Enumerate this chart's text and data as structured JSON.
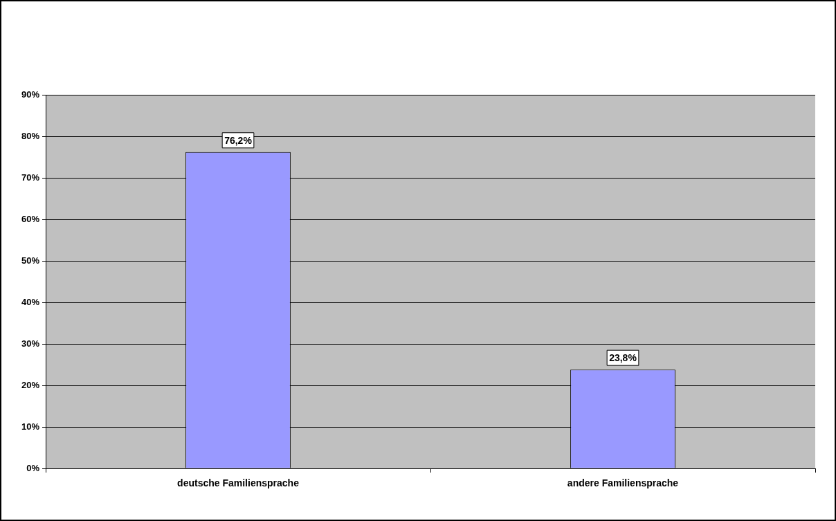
{
  "chart_data": {
    "type": "bar",
    "categories": [
      "deutsche Familiensprache",
      "andere Familiensprache"
    ],
    "values": [
      76.2,
      23.8
    ],
    "color": "#9999ff",
    "value_labels": [
      "76,2%",
      "23,8%"
    ],
    "ylim": [
      0,
      90
    ],
    "yticks": [
      {
        "value": 0,
        "label": "0%"
      },
      {
        "value": 10,
        "label": "10%"
      },
      {
        "value": 20,
        "label": "20%"
      },
      {
        "value": 30,
        "label": "30%"
      },
      {
        "value": 40,
        "label": "40%"
      },
      {
        "value": 50,
        "label": "50%"
      },
      {
        "value": 60,
        "label": "60%"
      },
      {
        "value": 70,
        "label": "70%"
      },
      {
        "value": 80,
        "label": "80%"
      },
      {
        "value": 90,
        "label": "90%"
      }
    ],
    "grid": "y",
    "legend": false
  }
}
